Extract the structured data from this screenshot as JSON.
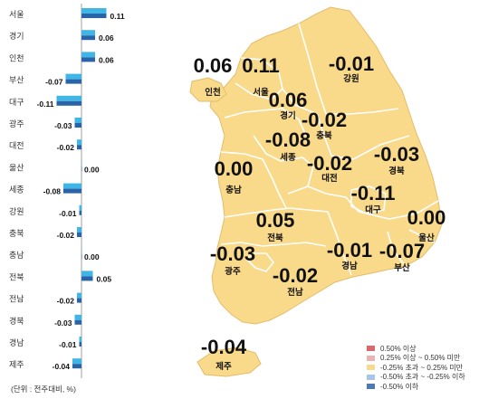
{
  "chart_data": {
    "type": "bar",
    "orientation": "horizontal",
    "categories": [
      "서울",
      "경기",
      "인천",
      "부산",
      "대구",
      "광주",
      "대전",
      "울산",
      "세종",
      "강원",
      "충북",
      "충남",
      "전북",
      "전남",
      "경북",
      "경남",
      "제주"
    ],
    "series": [
      {
        "values": [
          0.11,
          0.06,
          0.06,
          -0.07,
          -0.11,
          -0.03,
          -0.02,
          0.0,
          -0.08,
          -0.01,
          -0.02,
          0.0,
          0.05,
          -0.02,
          -0.03,
          -0.01,
          -0.04
        ]
      }
    ],
    "value_labels": [
      "0.11",
      "0.06",
      "0.06",
      "-0.07",
      "-0.11",
      "-0.03",
      "-0.02",
      "0.00",
      "-0.08",
      "-0.01",
      "-0.02",
      "0.00",
      "0.05",
      "-0.02",
      "-0.03",
      "-0.01",
      "-0.04"
    ],
    "unit_note": "(단위 : 전주대비, %)",
    "colors": {
      "light_bar": "#3fb6e6",
      "dark_bar": "#2b63a8"
    }
  },
  "map": {
    "regions": [
      {
        "name": "인천",
        "value": "0.06"
      },
      {
        "name": "서울",
        "value": "0.11"
      },
      {
        "name": "강원",
        "value": "-0.01"
      },
      {
        "name": "경기",
        "value": "0.06"
      },
      {
        "name": "충북",
        "value": "-0.02"
      },
      {
        "name": "세종",
        "value": "-0.08"
      },
      {
        "name": "대전",
        "value": "-0.02"
      },
      {
        "name": "충남",
        "value": "0.00"
      },
      {
        "name": "경북",
        "value": "-0.03"
      },
      {
        "name": "대구",
        "value": "-0.11"
      },
      {
        "name": "울산",
        "value": "0.00"
      },
      {
        "name": "전북",
        "value": "0.05"
      },
      {
        "name": "광주",
        "value": "-0.03"
      },
      {
        "name": "경남",
        "value": "-0.01"
      },
      {
        "name": "부산",
        "value": "-0.07"
      },
      {
        "name": "전남",
        "value": "-0.02"
      },
      {
        "name": "제주",
        "value": "-0.04"
      }
    ],
    "fill_color": "#f9d98a",
    "border_color": "#ffffff"
  },
  "legend": [
    {
      "label": "0.50% 이상",
      "color": "#d9686a"
    },
    {
      "label": "0.25% 이상 ~ 0.50% 미만",
      "color": "#eab3b1"
    },
    {
      "label": "-0.25% 초과 ~ 0.25% 미만",
      "color": "#f9d98a"
    },
    {
      "label": "-0.50% 초과 ~ -0.25% 이하",
      "color": "#a9c6e8"
    },
    {
      "label": "-0.50% 이하",
      "color": "#4f79b5"
    }
  ]
}
